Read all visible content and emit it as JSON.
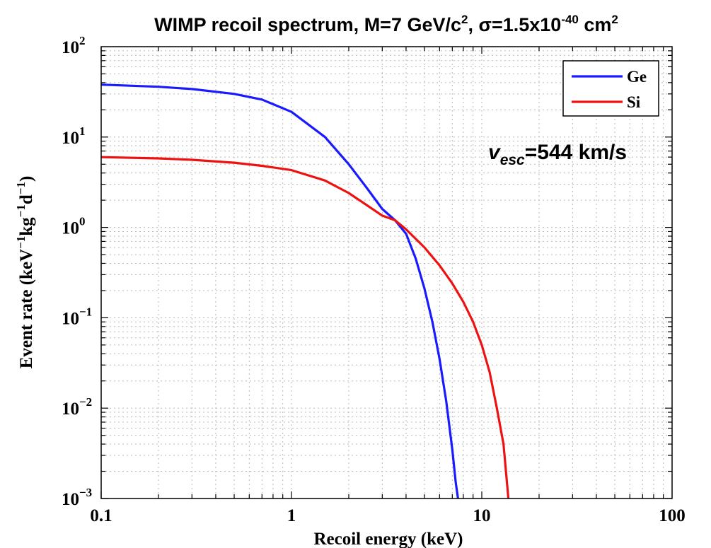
{
  "chart_data": {
    "type": "line",
    "title": {
      "prefix": "WIMP recoil spectrum, M=7 GeV/c",
      "prefix_sup": "2",
      "mid": ", σ=1.5x10",
      "mid_sup": "-40",
      "suffix": " cm",
      "suffix_sup": "2"
    },
    "xlabel": "Recoil energy (keV)",
    "ylabel": {
      "base": "Event rate (keV",
      "sup1": "−1",
      "mid": "kg",
      "sup2": "−1",
      "mid2": "d",
      "sup3": "−1",
      "end": ")"
    },
    "xscale": "log",
    "yscale": "log",
    "xlim": [
      0.1,
      100
    ],
    "ylim": [
      0.001,
      100
    ],
    "grid": true,
    "legend_position": "top-right",
    "x_ticks": [
      {
        "value": 0.1,
        "label": "0.1"
      },
      {
        "value": 1,
        "label": "1"
      },
      {
        "value": 10,
        "label": "10"
      },
      {
        "value": 100,
        "label": "100"
      }
    ],
    "y_ticks": [
      {
        "value": 0.001,
        "base": "10",
        "exp": "−3"
      },
      {
        "value": 0.01,
        "base": "10",
        "exp": "−2"
      },
      {
        "value": 0.1,
        "base": "10",
        "exp": "−1"
      },
      {
        "value": 1,
        "base": "10",
        "exp": "0"
      },
      {
        "value": 10,
        "base": "10",
        "exp": "1"
      },
      {
        "value": 100,
        "base": "10",
        "exp": "2"
      }
    ],
    "annotation": {
      "v": "v",
      "sub": "esc",
      "rest": "=544 km/s"
    },
    "series": [
      {
        "name": "Ge",
        "color": "#1a1aff",
        "x": [
          0.1,
          0.2,
          0.3,
          0.5,
          0.7,
          1.0,
          1.5,
          2.0,
          2.5,
          3.0,
          3.5,
          4.0,
          4.5,
          5.0,
          5.5,
          6.0,
          6.5,
          7.0,
          7.3,
          7.5
        ],
        "y": [
          38,
          36,
          34,
          30,
          26,
          19,
          10,
          5.0,
          2.7,
          1.6,
          1.2,
          0.85,
          0.45,
          0.21,
          0.09,
          0.035,
          0.012,
          0.0035,
          0.0015,
          0.001
        ]
      },
      {
        "name": "Si",
        "color": "#ee1111",
        "x": [
          0.1,
          0.2,
          0.3,
          0.5,
          0.7,
          1.0,
          1.5,
          2.0,
          2.5,
          3.0,
          3.5,
          4.0,
          5.0,
          6.0,
          7.0,
          8.0,
          9.0,
          10.0,
          11.0,
          12.0,
          13.0,
          13.8
        ],
        "y": [
          6.0,
          5.8,
          5.6,
          5.2,
          4.8,
          4.3,
          3.3,
          2.4,
          1.75,
          1.35,
          1.2,
          0.95,
          0.6,
          0.38,
          0.24,
          0.15,
          0.09,
          0.05,
          0.025,
          0.01,
          0.004,
          0.001
        ]
      }
    ]
  }
}
